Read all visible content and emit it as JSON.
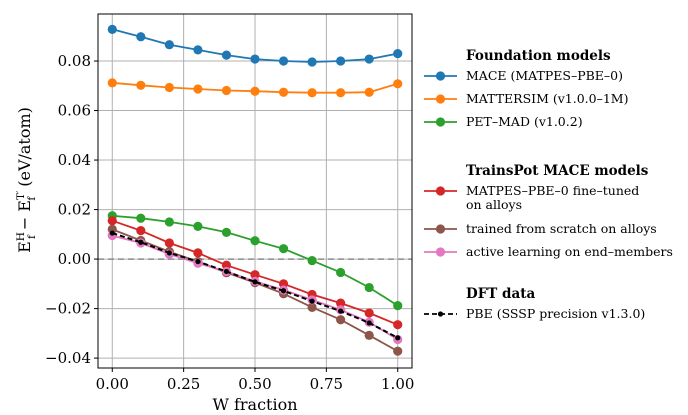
{
  "chart_data": {
    "type": "line",
    "xlabel": "W fraction",
    "ylabel": "E_f^H − E_f^T′ (eV/atom)",
    "ylabel_parts": {
      "e1": "E",
      "sub1": "f",
      "sup1": "H",
      "minus": "−",
      "e2": "E",
      "sub2": "f",
      "sup2": "T′",
      "unit": "(eV/atom)"
    },
    "xlim": [
      -0.05,
      1.05
    ],
    "ylim": [
      -0.044,
      0.099
    ],
    "xticks": [
      0.0,
      0.25,
      0.5,
      0.75,
      1.0
    ],
    "xtick_labels": [
      "0.00",
      "0.25",
      "0.50",
      "0.75",
      "1.00"
    ],
    "yticks": [
      -0.04,
      -0.02,
      0.0,
      0.02,
      0.04,
      0.06,
      0.08
    ],
    "ytick_labels": [
      "−0.04",
      "−0.02",
      "0.00",
      "0.02",
      "0.04",
      "0.06",
      "0.08"
    ],
    "grid": true,
    "reference_line": {
      "y": 0.0,
      "style": "dashed",
      "color": "#8c8c8c"
    },
    "legend_position": "right-outside",
    "x": [
      0.0,
      0.1,
      0.2,
      0.3,
      0.4,
      0.5,
      0.6,
      0.7,
      0.8,
      0.9,
      1.0
    ],
    "groups": [
      {
        "title": "Foundation models",
        "series": [
          0,
          1,
          2
        ]
      },
      {
        "title": "TrainsPot MACE models",
        "series": [
          3,
          4,
          5
        ]
      },
      {
        "title": "DFT data",
        "series": [
          6
        ]
      }
    ],
    "series": [
      {
        "name": "MACE  (MATPES–PBE–0)",
        "color": "#1f77b4",
        "style": "solid",
        "marker": "circle",
        "values": [
          0.0928,
          0.0898,
          0.0866,
          0.0845,
          0.0824,
          0.0808,
          0.08,
          0.0796,
          0.08,
          0.0808,
          0.083
        ]
      },
      {
        "name": "MATTERSIM  (v1.0.0–1M)",
        "color": "#ff7f0e",
        "style": "solid",
        "marker": "circle",
        "values": [
          0.0712,
          0.0702,
          0.0693,
          0.0687,
          0.0681,
          0.0678,
          0.0674,
          0.0672,
          0.0672,
          0.0674,
          0.0708
        ]
      },
      {
        "name": "PET–MAD  (v1.0.2)",
        "color": "#2ca02c",
        "style": "solid",
        "marker": "circle",
        "values": [
          0.0175,
          0.0165,
          0.015,
          0.0132,
          0.0108,
          0.0074,
          0.0042,
          -0.0006,
          -0.0054,
          -0.0115,
          -0.0188
        ]
      },
      {
        "name": "MATPES–PBE–0 fine–tuned",
        "name_line2": "on alloys",
        "color": "#d62728",
        "style": "solid",
        "marker": "circle",
        "values": [
          0.0155,
          0.0115,
          0.0065,
          0.0025,
          -0.0025,
          -0.0063,
          -0.01,
          -0.0143,
          -0.0178,
          -0.0218,
          -0.0265
        ]
      },
      {
        "name": "trained from scratch on alloys",
        "color": "#8c564b",
        "style": "solid",
        "marker": "circle",
        "values": [
          0.012,
          0.0075,
          0.003,
          -0.001,
          -0.0055,
          -0.0095,
          -0.014,
          -0.0195,
          -0.0245,
          -0.0308,
          -0.0372
        ]
      },
      {
        "name": "active learning on end–members",
        "color": "#e377c2",
        "style": "solid",
        "marker": "circle",
        "values": [
          0.0095,
          0.0065,
          0.002,
          -0.0017,
          -0.005,
          -0.009,
          -0.0125,
          -0.0165,
          -0.0205,
          -0.0255,
          -0.0325
        ]
      },
      {
        "name": "PBE  (SSSP precision v1.3.0)",
        "color": "#000000",
        "style": "dashed",
        "marker": "circle-small",
        "values": [
          0.0105,
          0.0068,
          0.0025,
          -0.001,
          -0.005,
          -0.0092,
          -0.0128,
          -0.017,
          -0.021,
          -0.0258,
          -0.0318
        ]
      }
    ]
  }
}
